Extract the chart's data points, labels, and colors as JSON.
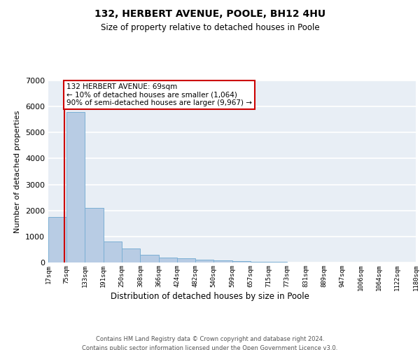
{
  "title": "132, HERBERT AVENUE, POOLE, BH12 4HU",
  "subtitle": "Size of property relative to detached houses in Poole",
  "xlabel": "Distribution of detached houses by size in Poole",
  "ylabel": "Number of detached properties",
  "bin_labels": [
    "17sqm",
    "75sqm",
    "133sqm",
    "191sqm",
    "250sqm",
    "308sqm",
    "366sqm",
    "424sqm",
    "482sqm",
    "540sqm",
    "599sqm",
    "657sqm",
    "715sqm",
    "773sqm",
    "831sqm",
    "889sqm",
    "947sqm",
    "1006sqm",
    "1064sqm",
    "1122sqm",
    "1180sqm"
  ],
  "bin_edges": [
    17,
    75,
    133,
    191,
    250,
    308,
    366,
    424,
    482,
    540,
    599,
    657,
    715,
    773,
    831,
    889,
    947,
    1006,
    1064,
    1122,
    1180
  ],
  "bar_heights": [
    1750,
    5800,
    2100,
    800,
    550,
    300,
    200,
    150,
    100,
    75,
    50,
    30,
    20,
    10,
    6,
    3,
    2,
    1,
    1,
    1,
    0
  ],
  "bar_color": "#b8cce4",
  "bar_edgecolor": "#7bafd4",
  "background_color": "#e8eef5",
  "grid_color": "#ffffff",
  "property_size": 69,
  "annotation_line1": "132 HERBERT AVENUE: 69sqm",
  "annotation_line2": "← 10% of detached houses are smaller (1,064)",
  "annotation_line3": "90% of semi-detached houses are larger (9,967) →",
  "redline_color": "#cc0000",
  "annotation_box_edgecolor": "#cc0000",
  "annotation_box_facecolor": "#ffffff",
  "ylim": [
    0,
    7000
  ],
  "yticks": [
    0,
    1000,
    2000,
    3000,
    4000,
    5000,
    6000,
    7000
  ],
  "footer_line1": "Contains HM Land Registry data © Crown copyright and database right 2024.",
  "footer_line2": "Contains public sector information licensed under the Open Government Licence v3.0."
}
